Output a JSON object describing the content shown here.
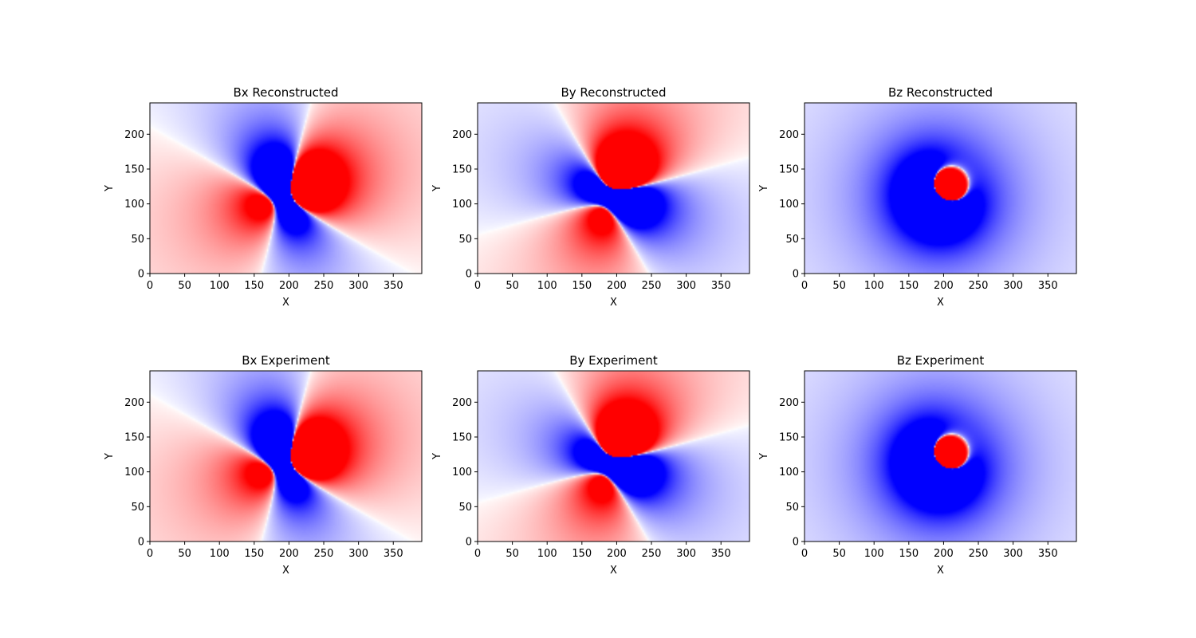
{
  "chart_data": [
    {
      "type": "heatmap",
      "title": "Bx Reconstructed",
      "xlabel": "X",
      "ylabel": "Y",
      "xlim": [
        0,
        391
      ],
      "ylim": [
        0,
        245
      ],
      "xticks": [
        0,
        50,
        100,
        150,
        200,
        250,
        300,
        350
      ],
      "yticks": [
        0,
        50,
        100,
        150,
        200
      ],
      "colormap": "bwr",
      "component": "x",
      "source": {
        "x": 200,
        "y": 118
      }
    },
    {
      "type": "heatmap",
      "title": "By Reconstructed",
      "xlabel": "X",
      "ylabel": "Y",
      "xlim": [
        0,
        391
      ],
      "ylim": [
        0,
        245
      ],
      "xticks": [
        0,
        50,
        100,
        150,
        200,
        250,
        300,
        350
      ],
      "yticks": [
        0,
        50,
        100,
        150,
        200
      ],
      "colormap": "bwr",
      "component": "y",
      "source": {
        "x": 200,
        "y": 118
      }
    },
    {
      "type": "heatmap",
      "title": "Bz Reconstructed",
      "xlabel": "X",
      "ylabel": "Y",
      "xlim": [
        0,
        391
      ],
      "ylim": [
        0,
        245
      ],
      "xticks": [
        0,
        50,
        100,
        150,
        200,
        250,
        300,
        350
      ],
      "yticks": [
        0,
        50,
        100,
        150,
        200
      ],
      "colormap": "bwr",
      "component": "z",
      "source": {
        "x": 200,
        "y": 118
      }
    },
    {
      "type": "heatmap",
      "title": "Bx Experiment",
      "xlabel": "X",
      "ylabel": "Y",
      "xlim": [
        0,
        391
      ],
      "ylim": [
        0,
        245
      ],
      "xticks": [
        0,
        50,
        100,
        150,
        200,
        250,
        300,
        350
      ],
      "yticks": [
        0,
        50,
        100,
        150,
        200
      ],
      "colormap": "bwr",
      "component": "x",
      "source": {
        "x": 200,
        "y": 118
      }
    },
    {
      "type": "heatmap",
      "title": "By Experiment",
      "xlabel": "X",
      "ylabel": "Y",
      "xlim": [
        0,
        391
      ],
      "ylim": [
        0,
        245
      ],
      "xticks": [
        0,
        50,
        100,
        150,
        200,
        250,
        300,
        350
      ],
      "yticks": [
        0,
        50,
        100,
        150,
        200
      ],
      "colormap": "bwr",
      "component": "y",
      "source": {
        "x": 200,
        "y": 118
      }
    },
    {
      "type": "heatmap",
      "title": "Bz Experiment",
      "xlabel": "X",
      "ylabel": "Y",
      "xlim": [
        0,
        391
      ],
      "ylim": [
        0,
        245
      ],
      "xticks": [
        0,
        50,
        100,
        150,
        200,
        250,
        300,
        350
      ],
      "yticks": [
        0,
        50,
        100,
        150,
        200
      ],
      "colormap": "bwr",
      "component": "z",
      "source": {
        "x": 200,
        "y": 118
      }
    }
  ],
  "colors": {
    "positive": "#ff0000",
    "negative": "#0000ff",
    "zero": "#ffffff",
    "axes": "#000000"
  }
}
